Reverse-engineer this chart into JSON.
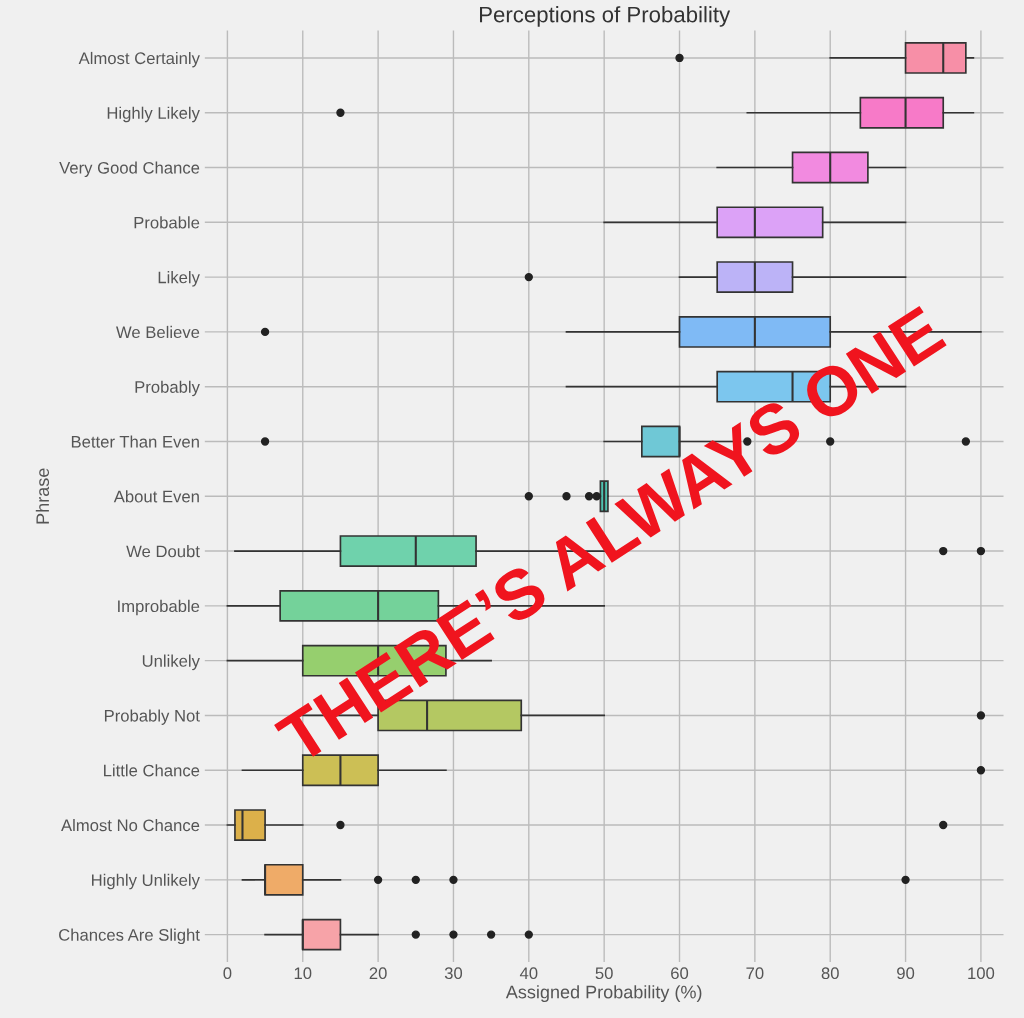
{
  "chart_data": {
    "type": "box",
    "title": "Perceptions of Probability",
    "xlabel": "Assigned Probability (%)",
    "ylabel": "Phrase",
    "orientation": "horizontal",
    "categories": [
      "Almost Certainly",
      "Highly Likely",
      "Very Good Chance",
      "Probable",
      "Likely",
      "We Believe",
      "Probably",
      "Better Than Even",
      "About Even",
      "We Doubt",
      "Improbable",
      "Unlikely",
      "Probably Not",
      "Little Chance",
      "Almost No Chance",
      "Highly Unlikely",
      "Chances Are Slight"
    ],
    "boxes": [
      {
        "low": 80,
        "q1": 90,
        "median": 95,
        "q3": 98,
        "high": 99,
        "outliers": [
          60
        ]
      },
      {
        "low": 69,
        "q1": 84,
        "median": 90,
        "q3": 95,
        "high": 99,
        "outliers": [
          15
        ]
      },
      {
        "low": 65,
        "q1": 75,
        "median": 80,
        "q3": 85,
        "high": 90
      },
      {
        "low": 50,
        "q1": 65,
        "median": 70,
        "q3": 79,
        "high": 90
      },
      {
        "low": 60,
        "q1": 65,
        "median": 70,
        "q3": 75,
        "high": 90,
        "outliers": [
          40
        ]
      },
      {
        "low": 45,
        "q1": 60,
        "median": 70,
        "q3": 80,
        "high": 100,
        "outliers": [
          5
        ]
      },
      {
        "low": 45,
        "q1": 65,
        "median": 75,
        "q3": 80,
        "high": 90
      },
      {
        "low": 50,
        "q1": 55,
        "median": 60,
        "q3": 60,
        "high": 67,
        "outliers": [
          5,
          69,
          80,
          98
        ]
      },
      {
        "low": 49.5,
        "q1": 49.5,
        "median": 50,
        "q3": 50.5,
        "high": 50.5,
        "outliers": [
          40,
          45,
          48,
          49
        ]
      },
      {
        "low": 1,
        "q1": 15,
        "median": 25,
        "q3": 33,
        "high": 50,
        "outliers": [
          95,
          100
        ]
      },
      {
        "low": 0,
        "q1": 7,
        "median": 20,
        "q3": 28,
        "high": 50
      },
      {
        "low": 0,
        "q1": 10,
        "median": 20,
        "q3": 29,
        "high": 35
      },
      {
        "low": 10,
        "q1": 20,
        "median": 26.5,
        "q3": 39,
        "high": 50,
        "outliers": [
          100
        ]
      },
      {
        "low": 2,
        "q1": 10,
        "median": 15,
        "q3": 20,
        "high": 29,
        "outliers": [
          100
        ]
      },
      {
        "low": 0,
        "q1": 1,
        "median": 2,
        "q3": 5,
        "high": 10,
        "outliers": [
          15,
          95
        ]
      },
      {
        "low": 2,
        "q1": 5,
        "median": 5,
        "q3": 10,
        "high": 15,
        "outliers": [
          20,
          25,
          30,
          90
        ]
      },
      {
        "low": 5,
        "q1": 10,
        "median": 10,
        "q3": 15,
        "high": 20,
        "outliers": [
          25,
          30,
          35,
          40
        ]
      }
    ],
    "colors": [
      "#f78fa7",
      "#f77ac8",
      "#f28ae0",
      "#dca2f7",
      "#bcb3f7",
      "#7fbaf5",
      "#7cc6ee",
      "#6fc8d6",
      "#4fc2b0",
      "#6fd2ac",
      "#74d29a",
      "#96cf6e",
      "#b4c862",
      "#ccbf55",
      "#dcb04a",
      "#efab68",
      "#f7a3a8"
    ],
    "xlim": [
      -3,
      103
    ],
    "xticks": [
      0,
      10,
      20,
      30,
      40,
      50,
      60,
      70,
      80,
      90,
      100
    ],
    "grid": true,
    "legend": false,
    "annotations": [
      "THERE’S ALWAYS ONE"
    ]
  }
}
